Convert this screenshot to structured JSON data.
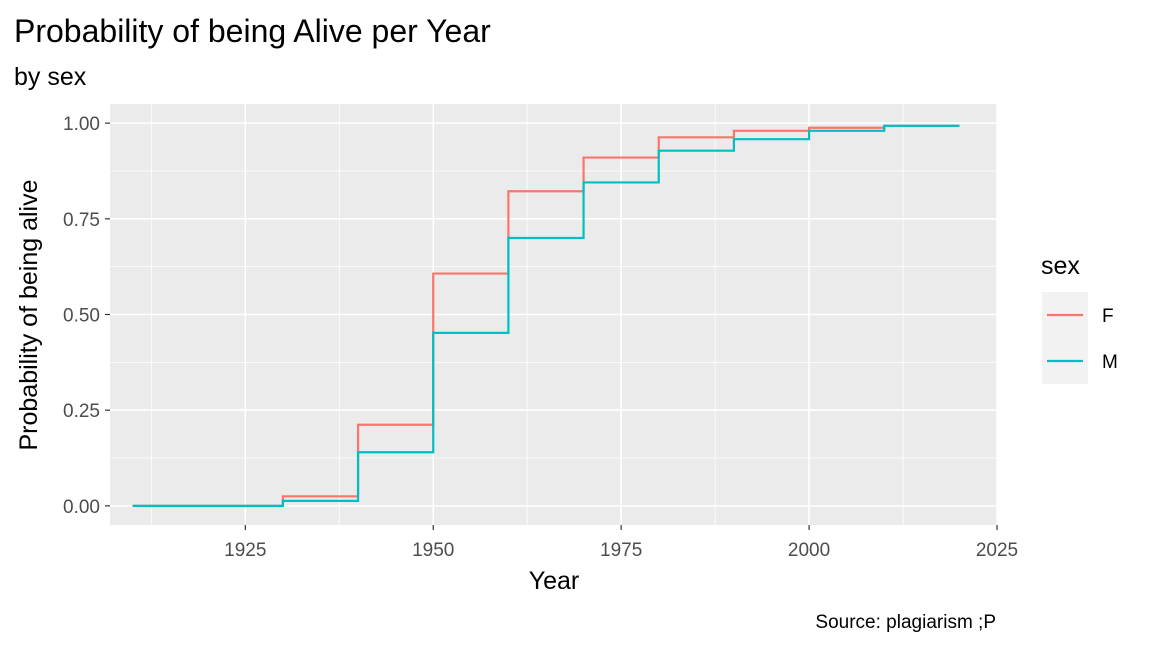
{
  "chart_data": {
    "type": "line",
    "step": true,
    "title": "Probability of being Alive per Year",
    "subtitle": "by sex",
    "xlabel": "Year",
    "ylabel": "Probability of being alive",
    "caption": "Source: plagiarism ;P",
    "xlim": [
      1907,
      2025
    ],
    "ylim": [
      -0.05,
      1.05
    ],
    "x_ticks": [
      1925,
      1950,
      1975,
      2000,
      2025
    ],
    "x_tick_labels": [
      "1925",
      "1950",
      "1975",
      "2000",
      "2025"
    ],
    "y_ticks": [
      0,
      0.25,
      0.5,
      0.75,
      1.0
    ],
    "y_tick_labels": [
      "0.00",
      "0.25",
      "0.50",
      "0.75",
      "1.00"
    ],
    "grid": true,
    "legend": {
      "title": "sex",
      "position": "right"
    },
    "series": [
      {
        "name": "F",
        "color": "#F8766D",
        "x": [
          1910,
          1920,
          1930,
          1940,
          1950,
          1960,
          1970,
          1980,
          1990,
          2000,
          2010,
          2020
        ],
        "y": [
          0.0,
          0.0,
          0.025,
          0.212,
          0.607,
          0.822,
          0.91,
          0.963,
          0.98,
          0.988,
          0.993,
          0.993
        ]
      },
      {
        "name": "M",
        "color": "#00BFC4",
        "x": [
          1910,
          1920,
          1930,
          1940,
          1950,
          1960,
          1970,
          1980,
          1990,
          2000,
          2010,
          2020
        ],
        "y": [
          0.0,
          0.0,
          0.013,
          0.14,
          0.452,
          0.7,
          0.845,
          0.928,
          0.958,
          0.98,
          0.993,
          0.993
        ]
      }
    ]
  }
}
